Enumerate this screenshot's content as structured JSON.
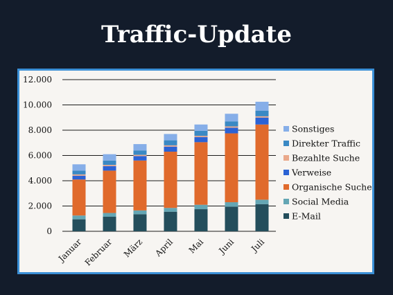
{
  "title": "Traffic-Update",
  "chart_data": {
    "type": "bar",
    "stacked": true,
    "categories": [
      "Januar",
      "Februar",
      "März",
      "April",
      "Mai",
      "Juni",
      "Juli"
    ],
    "ylim": [
      0,
      12000
    ],
    "yticks": [
      "0",
      "2.000",
      "4.000",
      "6.000",
      "8.000",
      "10.000",
      "12.000"
    ],
    "grid": true,
    "legend_position": "right",
    "series": [
      {
        "name": "E-Mail",
        "color": "#244e5c",
        "values": [
          950,
          1150,
          1350,
          1550,
          1750,
          1950,
          2150
        ]
      },
      {
        "name": "Social Media",
        "color": "#64a6b4",
        "values": [
          300,
          300,
          300,
          300,
          350,
          350,
          350
        ]
      },
      {
        "name": "Organische Suche",
        "color": "#e06a2c",
        "values": [
          2850,
          3350,
          3950,
          4450,
          4950,
          5450,
          5950
        ]
      },
      {
        "name": "Verweise",
        "color": "#2b62d4",
        "values": [
          300,
          350,
          350,
          400,
          400,
          450,
          550
        ]
      },
      {
        "name": "Bezahlte Suche",
        "color": "#eaa88a",
        "values": [
          100,
          100,
          100,
          100,
          100,
          100,
          100
        ]
      },
      {
        "name": "Direkter Traffic",
        "color": "#3a89c4",
        "values": [
          300,
          350,
          350,
          400,
          400,
          400,
          450
        ]
      },
      {
        "name": "Sonstiges",
        "color": "#86aee8",
        "values": [
          500,
          500,
          500,
          500,
          500,
          600,
          700
        ]
      }
    ]
  }
}
